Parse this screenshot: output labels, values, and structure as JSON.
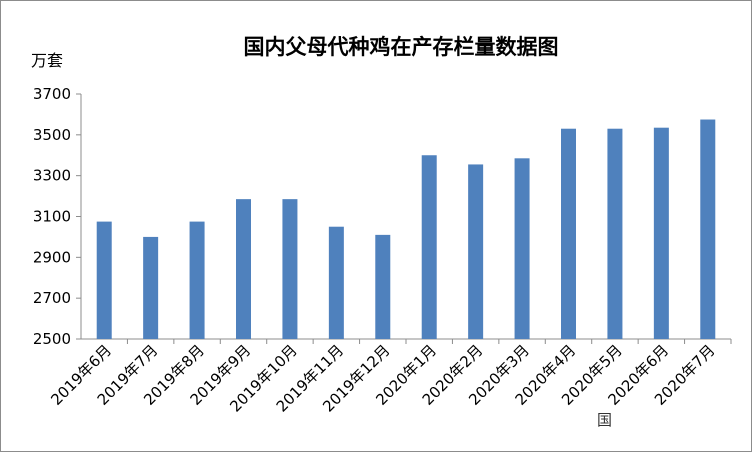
{
  "chart_data": {
    "type": "bar",
    "title": "国内父母代种鸡在产存栏量数据图",
    "ylabel": "万套",
    "xlabel": "",
    "categories": [
      "2019年6月",
      "2019年7月",
      "2019年8月",
      "2019年9月",
      "2019年10月",
      "2019年11月",
      "2019年12月",
      "2020年1月",
      "2020年2月",
      "2020年3月",
      "2020年4月",
      "2020年5月",
      "2020年6月",
      "2020年7月"
    ],
    "values": [
      3075,
      3000,
      3075,
      3185,
      3185,
      3050,
      3010,
      3400,
      3355,
      3385,
      3530,
      3530,
      3535,
      3575
    ],
    "ylim": [
      2500,
      3700
    ],
    "yticks": [
      "2500",
      "2700",
      "2900",
      "3100",
      "3300",
      "3500",
      "3700"
    ],
    "grid": false,
    "bar_color": "#4f81bd",
    "axis_color": "#8c8c8c"
  },
  "watermark": "国"
}
